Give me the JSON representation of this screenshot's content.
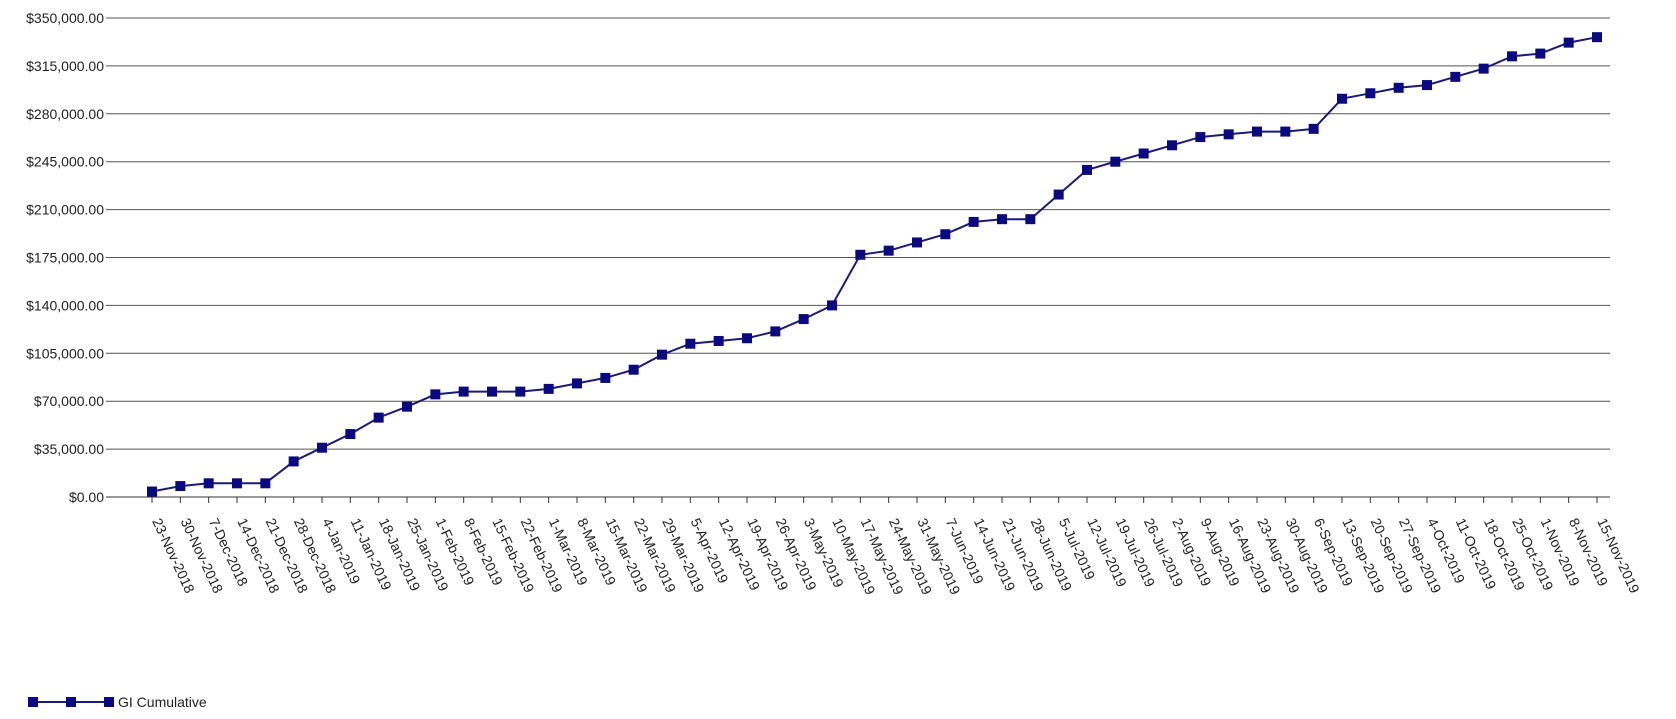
{
  "chart_data": {
    "type": "line",
    "title": "",
    "xlabel": "",
    "ylabel": "",
    "ylim": [
      0,
      350000
    ],
    "y_ticks": [
      "$0.00",
      "$35,000.00",
      "$70,000.00",
      "$105,000.00",
      "$140,000.00",
      "$175,000.00",
      "$210,000.00",
      "$245,000.00",
      "$280,000.00",
      "$315,000.00",
      "$350,000.00"
    ],
    "y_tick_values": [
      0,
      35000,
      70000,
      105000,
      140000,
      175000,
      210000,
      245000,
      280000,
      315000,
      350000
    ],
    "grid": true,
    "legend_position": "bottom-left",
    "line_color": "#1a1a7a",
    "marker_color": "#0a0a80",
    "categories": [
      "23-Nov-2018",
      "30-Nov-2018",
      "7-Dec-2018",
      "14-Dec-2018",
      "21-Dec-2018",
      "28-Dec-2018",
      "4-Jan-2019",
      "11-Jan-2019",
      "18-Jan-2019",
      "25-Jan-2019",
      "1-Feb-2019",
      "8-Feb-2019",
      "15-Feb-2019",
      "22-Feb-2019",
      "1-Mar-2019",
      "8-Mar-2019",
      "15-Mar-2019",
      "22-Mar-2019",
      "29-Mar-2019",
      "5-Apr-2019",
      "12-Apr-2019",
      "19-Apr-2019",
      "26-Apr-2019",
      "3-May-2019",
      "10-May-2019",
      "17-May-2019",
      "24-May-2019",
      "31-May-2019",
      "7-Jun-2019",
      "14-Jun-2019",
      "21-Jun-2019",
      "28-Jun-2019",
      "5-Jul-2019",
      "12-Jul-2019",
      "19-Jul-2019",
      "26-Jul-2019",
      "2-Aug-2019",
      "9-Aug-2019",
      "16-Aug-2019",
      "23-Aug-2019",
      "30-Aug-2019",
      "6-Sep-2019",
      "13-Sep-2019",
      "20-Sep-2019",
      "27-Sep-2019",
      "4-Oct-2019",
      "11-Oct-2019",
      "18-Oct-2019",
      "25-Oct-2019",
      "1-Nov-2019",
      "8-Nov-2019",
      "15-Nov-2019"
    ],
    "series": [
      {
        "name": "GI Cumulative",
        "values": [
          4000,
          8000,
          10000,
          10000,
          10000,
          26000,
          36000,
          46000,
          58000,
          66000,
          75000,
          77000,
          77000,
          77000,
          79000,
          83000,
          87000,
          93000,
          104000,
          112000,
          114000,
          116000,
          121000,
          130000,
          140000,
          177000,
          180000,
          186000,
          192000,
          201000,
          203000,
          203000,
          221000,
          239000,
          245000,
          251000,
          257000,
          263000,
          265000,
          267000,
          267000,
          269000,
          291000,
          295000,
          299000,
          301000,
          307000,
          313000,
          322000,
          324000,
          332000,
          336000
        ]
      }
    ]
  }
}
